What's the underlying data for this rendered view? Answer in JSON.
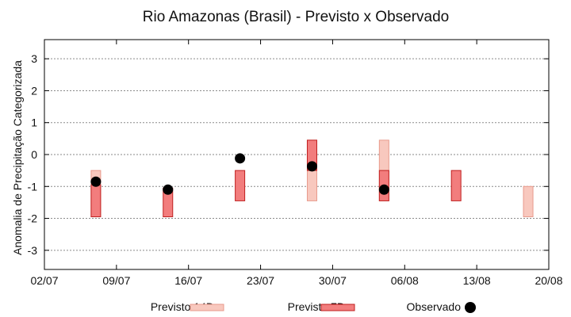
{
  "chart_data": {
    "type": "box-range",
    "title": "Rio Amazonas (Brasil) - Previsto x Observado",
    "xlabel": "",
    "ylabel": "Anomalia de Precipitação Categorizada",
    "ylim": [
      -3.6,
      3.6
    ],
    "yticks": [
      -3,
      -2,
      -1,
      0,
      1,
      2,
      3
    ],
    "xlim": [
      "2025-07-02",
      "2025-08-20"
    ],
    "xticks": [
      {
        "date": "2025-07-02",
        "label": "02/07"
      },
      {
        "date": "2025-07-09",
        "label": "09/07"
      },
      {
        "date": "2025-07-16",
        "label": "16/07"
      },
      {
        "date": "2025-07-23",
        "label": "23/07"
      },
      {
        "date": "2025-07-30",
        "label": "30/07"
      },
      {
        "date": "2025-08-06",
        "label": "06/08"
      },
      {
        "date": "2025-08-13",
        "label": "13/08"
      },
      {
        "date": "2025-08-20",
        "label": "20/08"
      }
    ],
    "grid": true,
    "legend_placement": "bottom",
    "series": [
      {
        "name": "Previsto 14D",
        "kind": "range",
        "fill": "#f8c8be",
        "stroke": "#e89a8c",
        "points": [
          {
            "x": "2025-07-07",
            "low": -1.95,
            "high": -0.5
          },
          {
            "x": "2025-07-28",
            "low": -1.45,
            "high": 0.45
          },
          {
            "x": "2025-08-04",
            "low": -1.45,
            "high": 0.45
          },
          {
            "x": "2025-08-18",
            "low": -1.95,
            "high": -1.0
          }
        ]
      },
      {
        "name": "Previsto 7D",
        "kind": "range",
        "fill": "#f27d7d",
        "stroke": "#c02020",
        "points": [
          {
            "x": "2025-07-07",
            "low": -1.95,
            "high": -0.95
          },
          {
            "x": "2025-07-14",
            "low": -1.95,
            "high": -1.05
          },
          {
            "x": "2025-07-21",
            "low": -1.45,
            "high": -0.5
          },
          {
            "x": "2025-07-28",
            "low": -0.5,
            "high": 0.45
          },
          {
            "x": "2025-08-04",
            "low": -1.45,
            "high": -0.5
          },
          {
            "x": "2025-08-11",
            "low": -1.45,
            "high": -0.5
          }
        ]
      },
      {
        "name": "Observado",
        "kind": "point",
        "color": "#000000",
        "points": [
          {
            "x": "2025-07-07",
            "y": -0.85
          },
          {
            "x": "2025-07-14",
            "y": -1.1
          },
          {
            "x": "2025-07-21",
            "y": -0.12
          },
          {
            "x": "2025-07-28",
            "y": -0.37
          },
          {
            "x": "2025-08-04",
            "y": -1.1
          }
        ]
      }
    ]
  }
}
